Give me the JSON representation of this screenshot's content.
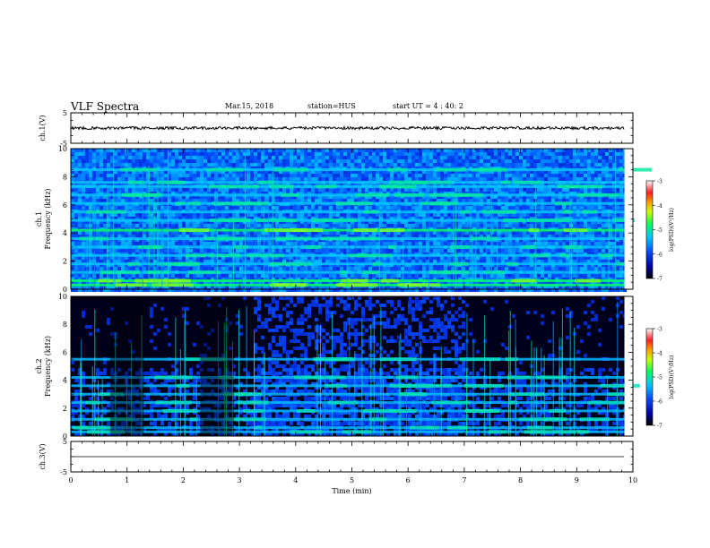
{
  "header": {
    "title": "VLF Spectra",
    "date": "Mar.15, 2018",
    "station": "station=HUS",
    "start": "start UT =  4 : 40: 2"
  },
  "chart_data": {
    "type": "heatmap",
    "xlabel": "Time (min)",
    "xlim": [
      0,
      10
    ],
    "xticks": [
      0,
      1,
      2,
      3,
      4,
      5,
      6,
      7,
      8,
      9,
      10
    ],
    "panels": [
      {
        "name": "ch1-waveform",
        "type": "line",
        "ylabel": "ch.1(V)",
        "ylim": [
          -5,
          5
        ],
        "yticks": [
          -5,
          5
        ],
        "level": 0
      },
      {
        "name": "ch1-spectrogram",
        "type": "heatmap",
        "ylabel": "ch.1\nFrequency (kHz)",
        "ylim": [
          0,
          10
        ],
        "yticks": [
          0,
          2,
          4,
          6,
          8,
          10
        ],
        "bands_khz": [
          0.3,
          0.6,
          1.2,
          1.8,
          2.4,
          3.0,
          3.6,
          4.2,
          4.9,
          5.5,
          6.1,
          6.7,
          7.3,
          7.6,
          8.5
        ],
        "colorbar": {
          "label": "log(PSD)(V²/Hz)",
          "range": [
            -7,
            -3
          ],
          "ticks": [
            -3,
            -4,
            -5,
            -6,
            -7
          ]
        }
      },
      {
        "name": "ch2-spectrogram",
        "type": "heatmap",
        "ylabel": "ch.2\nFrequency (kHz)",
        "ylim": [
          0,
          10
        ],
        "yticks": [
          0,
          2,
          4,
          6,
          8,
          10
        ],
        "bands_khz": [
          0.3,
          0.6,
          1.2,
          1.8,
          2.4,
          3.0,
          3.6,
          4.2,
          5.5
        ],
        "colorbar": {
          "label": "log(PSD)(V²/Hz)",
          "range": [
            -7,
            -3
          ],
          "ticks": [
            -3,
            -4,
            -5,
            -6,
            -7
          ]
        }
      },
      {
        "name": "ch3-waveform",
        "type": "line",
        "ylabel": "ch.3(V)",
        "ylim": [
          -5,
          5
        ],
        "yticks": [
          -5,
          5
        ],
        "level": 0
      }
    ]
  }
}
